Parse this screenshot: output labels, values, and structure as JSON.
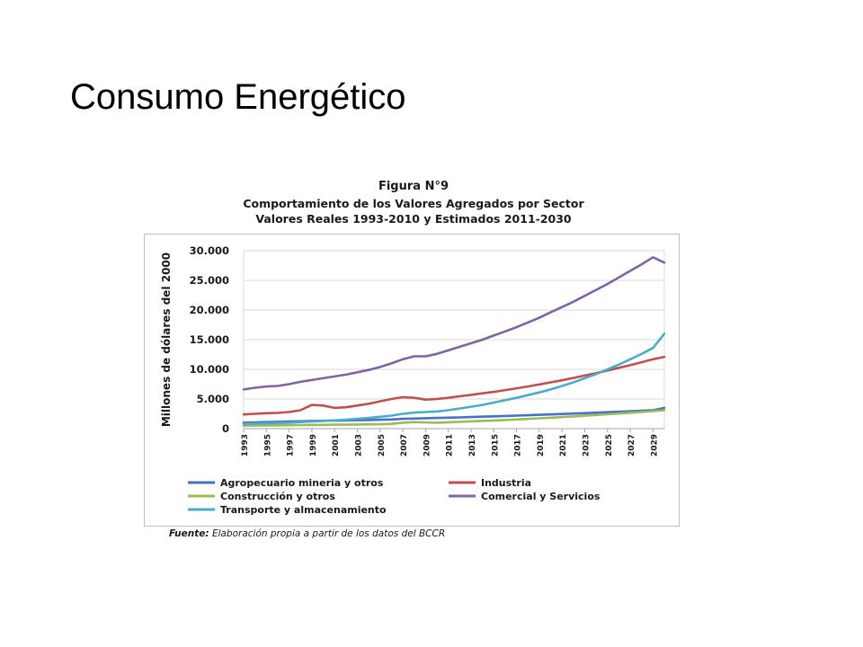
{
  "slide": {
    "title": "Consumo Energético"
  },
  "figure": {
    "label": "Figura N°9",
    "title": "Comportamiento de los Valores Agregados por Sector",
    "subtitle": "Valores Reales 1993-2010 y Estimados 2011-2030",
    "source_prefix": "Fuente:",
    "source_text": "Elaboración propia a partir de los datos del BCCR"
  },
  "chart_data": {
    "type": "line",
    "title": "Comportamiento de los Valores Agregados por Sector",
    "subtitle": "Valores Reales 1993-2010 y Estimados 2011-2030",
    "xlabel": "",
    "ylabel": "Millones de dólares del 2000",
    "ylim": [
      0,
      30000
    ],
    "yticks": [
      0,
      5000,
      10000,
      15000,
      20000,
      25000,
      30000
    ],
    "ytick_labels": [
      "0",
      "5.000",
      "10.000",
      "15.000",
      "20.000",
      "25.000",
      "30.000"
    ],
    "xlim": [
      1993,
      2030
    ],
    "xtick_labels": [
      "1993",
      "1995",
      "1997",
      "1999",
      "2001",
      "2003",
      "2005",
      "2007",
      "2009",
      "2011",
      "2013",
      "2015",
      "2017",
      "2019",
      "2021",
      "2023",
      "2025",
      "2027",
      "2029"
    ],
    "grid": "horizontal",
    "legend_position": "bottom",
    "x": [
      1993,
      1994,
      1995,
      1996,
      1997,
      1998,
      1999,
      2000,
      2001,
      2002,
      2003,
      2004,
      2005,
      2006,
      2007,
      2008,
      2009,
      2010,
      2011,
      2012,
      2013,
      2014,
      2015,
      2016,
      2017,
      2018,
      2019,
      2020,
      2021,
      2022,
      2023,
      2024,
      2025,
      2026,
      2027,
      2028,
      2029,
      2030
    ],
    "series": [
      {
        "name": "Agropecuario mineria y otros",
        "color": "#4472c4",
        "values": [
          1000,
          1050,
          1100,
          1150,
          1200,
          1250,
          1300,
          1320,
          1350,
          1380,
          1420,
          1460,
          1500,
          1550,
          1650,
          1700,
          1750,
          1800,
          1850,
          1900,
          1960,
          2020,
          2080,
          2140,
          2200,
          2260,
          2330,
          2400,
          2470,
          2540,
          2610,
          2690,
          2770,
          2850,
          2930,
          3010,
          3090,
          3500
        ]
      },
      {
        "name": "Industria",
        "color": "#c0504d",
        "values": [
          2400,
          2500,
          2600,
          2650,
          2800,
          3100,
          4000,
          3900,
          3500,
          3600,
          3900,
          4200,
          4600,
          5000,
          5300,
          5200,
          4900,
          5000,
          5200,
          5450,
          5700,
          5950,
          6200,
          6500,
          6800,
          7100,
          7450,
          7800,
          8150,
          8550,
          8950,
          9350,
          9800,
          10250,
          10700,
          11200,
          11700,
          12100
        ]
      },
      {
        "name": "Construcción y otros",
        "color": "#9bbb59",
        "values": [
          500,
          520,
          540,
          560,
          580,
          600,
          620,
          640,
          660,
          680,
          700,
          720,
          750,
          800,
          1000,
          1100,
          1050,
          1000,
          1080,
          1150,
          1220,
          1300,
          1380,
          1460,
          1550,
          1640,
          1740,
          1840,
          1950,
          2060,
          2180,
          2300,
          2420,
          2550,
          2680,
          2820,
          2960,
          3100
        ]
      },
      {
        "name": "Comercial y Servicios",
        "color": "#8064a2",
        "values": [
          6600,
          6900,
          7100,
          7200,
          7500,
          7900,
          8200,
          8500,
          8800,
          9100,
          9500,
          9900,
          10400,
          11000,
          11700,
          12200,
          12200,
          12600,
          13200,
          13800,
          14400,
          15000,
          15700,
          16400,
          17100,
          17900,
          18700,
          19600,
          20500,
          21400,
          22400,
          23400,
          24400,
          25500,
          26600,
          27700,
          28900,
          28000
        ]
      },
      {
        "name": "Transporte y almacenamiento",
        "color": "#4bacc6",
        "values": [
          800,
          850,
          900,
          950,
          1000,
          1100,
          1200,
          1300,
          1400,
          1500,
          1650,
          1800,
          2000,
          2200,
          2500,
          2700,
          2800,
          2900,
          3100,
          3400,
          3700,
          4000,
          4400,
          4800,
          5200,
          5650,
          6100,
          6600,
          7200,
          7800,
          8500,
          9200,
          10000,
          10800,
          11700,
          12600,
          13600,
          16000
        ]
      }
    ],
    "legend": [
      "Agropecuario mineria y otros",
      "Industria",
      "Construcción y otros",
      "Comercial y Servicios",
      "Transporte y almacenamiento"
    ]
  }
}
